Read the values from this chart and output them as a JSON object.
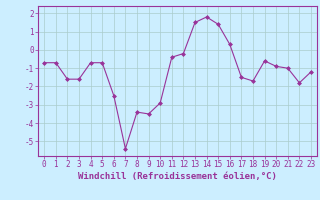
{
  "x": [
    0,
    1,
    2,
    3,
    4,
    5,
    6,
    7,
    8,
    9,
    10,
    11,
    12,
    13,
    14,
    15,
    16,
    17,
    18,
    19,
    20,
    21,
    22,
    23
  ],
  "y": [
    -0.7,
    -0.7,
    -1.6,
    -1.6,
    -0.7,
    -0.7,
    -2.5,
    -5.4,
    -3.4,
    -3.5,
    -2.9,
    -0.4,
    -0.2,
    1.5,
    1.8,
    1.4,
    0.3,
    -1.5,
    -1.7,
    -0.6,
    -0.9,
    -1.0,
    -1.8,
    -1.2
  ],
  "line_color": "#993399",
  "marker": "D",
  "marker_size": 2,
  "bg_color": "#cceeff",
  "grid_color": "#aacccc",
  "xlabel": "Windchill (Refroidissement éolien,°C)",
  "ylim": [
    -5.8,
    2.4
  ],
  "xlim": [
    -0.5,
    23.5
  ],
  "yticks": [
    -5,
    -4,
    -3,
    -2,
    -1,
    0,
    1,
    2
  ],
  "xticks": [
    0,
    1,
    2,
    3,
    4,
    5,
    6,
    7,
    8,
    9,
    10,
    11,
    12,
    13,
    14,
    15,
    16,
    17,
    18,
    19,
    20,
    21,
    22,
    23
  ],
  "tick_color": "#993399",
  "label_color": "#993399",
  "label_fontsize": 6.5,
  "tick_fontsize": 5.5
}
